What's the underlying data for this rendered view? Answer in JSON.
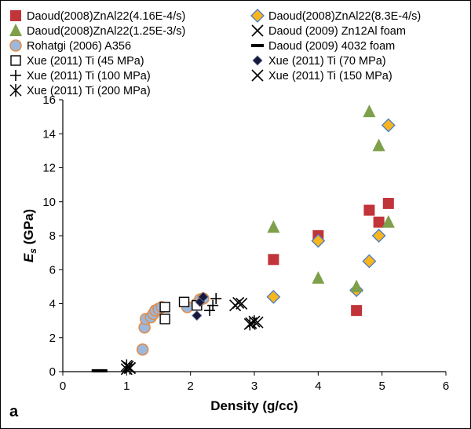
{
  "chart_data": {
    "type": "scatter",
    "panel_label": "a",
    "xlabel": "Density (g/cc)",
    "ylabel": "Es (GPa)",
    "ylabel_main": "E",
    "ylabel_sub": "s",
    "ylabel_rest": " (GPa)",
    "xlim": [
      0,
      6
    ],
    "ylim": [
      0,
      16
    ],
    "xticks": [
      0,
      1,
      2,
      3,
      4,
      5,
      6
    ],
    "yticks": [
      0,
      2,
      4,
      6,
      8,
      10,
      12,
      14,
      16
    ],
    "grid": false,
    "legend_position": "top",
    "series": [
      {
        "name": "Daoud(2008)ZnAl22(4.16E-4/s)",
        "marker": "square-filled",
        "color": "#c0343a",
        "points": [
          [
            3.3,
            6.6
          ],
          [
            4.0,
            8.0
          ],
          [
            4.6,
            3.6
          ],
          [
            4.8,
            9.5
          ],
          [
            4.95,
            8.8
          ],
          [
            5.1,
            9.9
          ]
        ]
      },
      {
        "name": "Daoud(2008)ZnAl22(8.3E-4/s)",
        "marker": "diamond-filled",
        "color": "#f8b51d",
        "edge": "#4a7bc8",
        "points": [
          [
            3.3,
            4.4
          ],
          [
            4.0,
            7.7
          ],
          [
            4.6,
            4.8
          ],
          [
            4.8,
            6.5
          ],
          [
            4.95,
            8.0
          ],
          [
            5.1,
            14.5
          ]
        ]
      },
      {
        "name": "Daoud(2008)ZnAl22(1.25E-3/s)",
        "marker": "triangle-filled",
        "color": "#7ea04a",
        "points": [
          [
            3.3,
            8.5
          ],
          [
            4.0,
            5.5
          ],
          [
            4.6,
            5.0
          ],
          [
            4.8,
            15.3
          ],
          [
            4.95,
            13.3
          ],
          [
            5.1,
            8.8
          ]
        ]
      },
      {
        "name": "Daoud (2009)  Zn12Al foam",
        "marker": "x",
        "color": "#000000",
        "points": [
          [
            1.0,
            0.15
          ],
          [
            1.02,
            0.3
          ],
          [
            1.05,
            0.22
          ]
        ]
      },
      {
        "name": "Rohatgi (2006) A356",
        "marker": "circle-filled",
        "color": "#9cb8dc",
        "edge": "#e08b4a",
        "points": [
          [
            1.25,
            1.3
          ],
          [
            1.28,
            2.6
          ],
          [
            1.3,
            3.1
          ],
          [
            1.38,
            3.2
          ],
          [
            1.42,
            3.4
          ],
          [
            1.45,
            3.6
          ],
          [
            1.5,
            3.7
          ],
          [
            1.55,
            3.8
          ],
          [
            1.95,
            3.8
          ],
          [
            2.1,
            4.0
          ],
          [
            2.15,
            4.25
          ],
          [
            2.2,
            4.3
          ]
        ]
      },
      {
        "name": "Daoud (2009) 4032 foam",
        "marker": "dash",
        "color": "#000000",
        "points": [
          [
            0.55,
            0.05
          ],
          [
            0.6,
            0.05
          ]
        ]
      },
      {
        "name": "Xue (2011)  Ti (45 MPa)",
        "marker": "square-open",
        "color": "#000000",
        "points": [
          [
            1.6,
            3.1
          ],
          [
            1.6,
            3.8
          ],
          [
            1.9,
            4.1
          ],
          [
            2.1,
            3.9
          ]
        ]
      },
      {
        "name": "Xue (2011)  Ti (70 MPa)",
        "marker": "diamond-dark",
        "color": "#151a3c",
        "points": [
          [
            2.1,
            3.3
          ],
          [
            2.15,
            4.1
          ],
          [
            2.2,
            4.4
          ]
        ]
      },
      {
        "name": "Xue (2011)  Ti (100 MPa)",
        "marker": "plus",
        "color": "#000000",
        "points": [
          [
            2.3,
            3.6
          ],
          [
            2.35,
            3.9
          ],
          [
            2.4,
            4.3
          ]
        ]
      },
      {
        "name": "Xue (2011)  Ti (150 MPa)",
        "marker": "x",
        "color": "#000000",
        "points": [
          [
            2.7,
            3.9
          ],
          [
            2.75,
            4.05
          ],
          [
            2.8,
            4.0
          ],
          [
            2.95,
            2.85
          ],
          [
            3.05,
            2.9
          ]
        ]
      },
      {
        "name": "Xue (2011)  Ti (200 MPa)",
        "marker": "asterisk",
        "color": "#000000",
        "points": [
          [
            1.0,
            0.35
          ],
          [
            1.05,
            0.2
          ],
          [
            2.93,
            2.8
          ],
          [
            3.0,
            2.95
          ]
        ]
      }
    ]
  }
}
